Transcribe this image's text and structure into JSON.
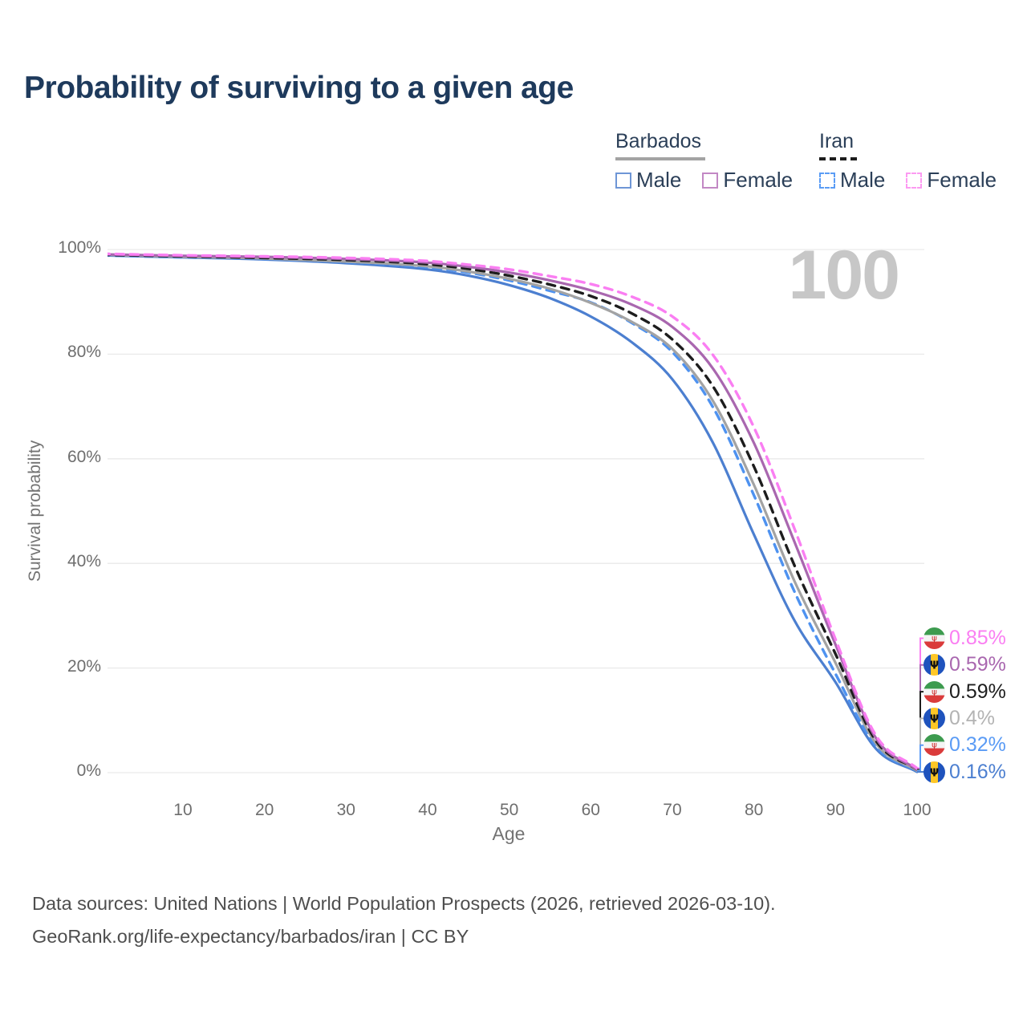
{
  "page": {
    "title": "Probability of surviving to a given age",
    "watermark": "100",
    "footer_line1": "Data sources: United Nations | World Population Prospects (2026, retrieved 2026-03-10).",
    "footer_line2": "GeoRank.org/life-expectancy/barbados/iran | CC BY"
  },
  "legend": {
    "groups": [
      {
        "label": "Barbados",
        "underline_style": "solid",
        "underline_color": "#a3a3a3",
        "items": [
          {
            "label": "Male",
            "color": "#6e96d6",
            "style": "solid"
          },
          {
            "label": "Female",
            "color": "#c288c4",
            "style": "solid"
          }
        ]
      },
      {
        "label": "Iran",
        "underline_style": "dashed",
        "underline_color": "#1d1d1d",
        "items": [
          {
            "label": "Male",
            "color": "#5a9cf5",
            "style": "dashed"
          },
          {
            "label": "Female",
            "color": "#fc9af2",
            "style": "dashed"
          }
        ]
      }
    ]
  },
  "chart_data": {
    "type": "line",
    "title": "Probability of surviving to a given age",
    "xlabel": "Age",
    "ylabel": "Survival probability",
    "xlim": [
      0,
      100
    ],
    "ylim": [
      0,
      100
    ],
    "grid": "horizontal",
    "legend_position": "top-right",
    "x_ticks": [
      10,
      20,
      30,
      40,
      50,
      60,
      70,
      80,
      90,
      100
    ],
    "y_ticks": [
      {
        "value": 0,
        "label": "0%"
      },
      {
        "value": 20,
        "label": "20%"
      },
      {
        "value": 40,
        "label": "40%"
      },
      {
        "value": 60,
        "label": "60%"
      },
      {
        "value": 80,
        "label": "80%"
      },
      {
        "value": 100,
        "label": "100%"
      }
    ],
    "y_gridlines": [
      0,
      20,
      40,
      60,
      80,
      100
    ],
    "ages": [
      0,
      10,
      20,
      30,
      40,
      45,
      50,
      55,
      60,
      65,
      70,
      75,
      80,
      85,
      90,
      95,
      100
    ],
    "series": [
      {
        "name": "Iran Female",
        "country": "Iran",
        "sex": "Female",
        "color": "#fa7ef2",
        "dash": true,
        "values": [
          99.2,
          98.9,
          98.7,
          98.4,
          97.8,
          97.1,
          96.2,
          94.9,
          93.4,
          91.0,
          87.2,
          79.8,
          66.0,
          46.5,
          25.5,
          7.0,
          0.85
        ]
      },
      {
        "name": "Barbados Female",
        "country": "Barbados",
        "sex": "Female",
        "color": "#a967af",
        "dash": false,
        "values": [
          99.1,
          98.8,
          98.6,
          98.2,
          97.5,
          96.7,
          95.6,
          94.1,
          92.2,
          89.5,
          85.2,
          77.2,
          63.0,
          44.0,
          24.5,
          6.5,
          0.59
        ]
      },
      {
        "name": "Iran Overall",
        "country": "Iran",
        "sex": "Both",
        "color": "#1d1d1d",
        "dash": true,
        "values": [
          99.0,
          98.7,
          98.4,
          98.0,
          97.2,
          96.3,
          95.0,
          93.3,
          91.1,
          87.8,
          82.8,
          73.8,
          58.5,
          39.5,
          22.7,
          6.0,
          0.59
        ]
      },
      {
        "name": "Barbados Overall",
        "country": "Barbados",
        "sex": "Both",
        "color": "#a3a3a3",
        "dash": false,
        "values": [
          99.0,
          98.6,
          98.3,
          97.7,
          96.8,
          95.8,
          94.4,
          92.5,
          89.8,
          86.2,
          81.0,
          71.0,
          55.0,
          36.5,
          21.0,
          5.5,
          0.4
        ]
      },
      {
        "name": "Iran Male",
        "country": "Iran",
        "sex": "Male",
        "color": "#4e92f0",
        "dash": true,
        "values": [
          98.9,
          98.5,
          98.2,
          97.6,
          96.6,
          95.6,
          94.1,
          92.1,
          89.9,
          86.0,
          80.4,
          69.8,
          53.0,
          34.5,
          18.9,
          5.0,
          0.32
        ]
      },
      {
        "name": "Barbados Male",
        "country": "Barbados",
        "sex": "Male",
        "color": "#4c7fd0",
        "dash": false,
        "values": [
          98.9,
          98.5,
          98.1,
          97.4,
          96.2,
          95.0,
          93.2,
          90.7,
          87.2,
          82.3,
          75.2,
          63.0,
          45.5,
          29.0,
          17.3,
          4.5,
          0.16
        ]
      }
    ],
    "end_labels": [
      {
        "series": "Iran Female",
        "value": "0.85%",
        "color": "#fa7ef2",
        "flag": "iran"
      },
      {
        "series": "Barbados Female",
        "value": "0.59%",
        "color": "#a967af",
        "flag": "barbados"
      },
      {
        "series": "Iran Overall",
        "value": "0.59%",
        "color": "#1d1d1d",
        "flag": "iran"
      },
      {
        "series": "Barbados Overall",
        "value": "0.4%",
        "color": "#b3b3b3",
        "flag": "barbados"
      },
      {
        "series": "Iran Male",
        "value": "0.32%",
        "color": "#5a9bf5",
        "flag": "iran"
      },
      {
        "series": "Barbados Male",
        "value": "0.16%",
        "color": "#4c7fd0",
        "flag": "barbados"
      }
    ]
  }
}
